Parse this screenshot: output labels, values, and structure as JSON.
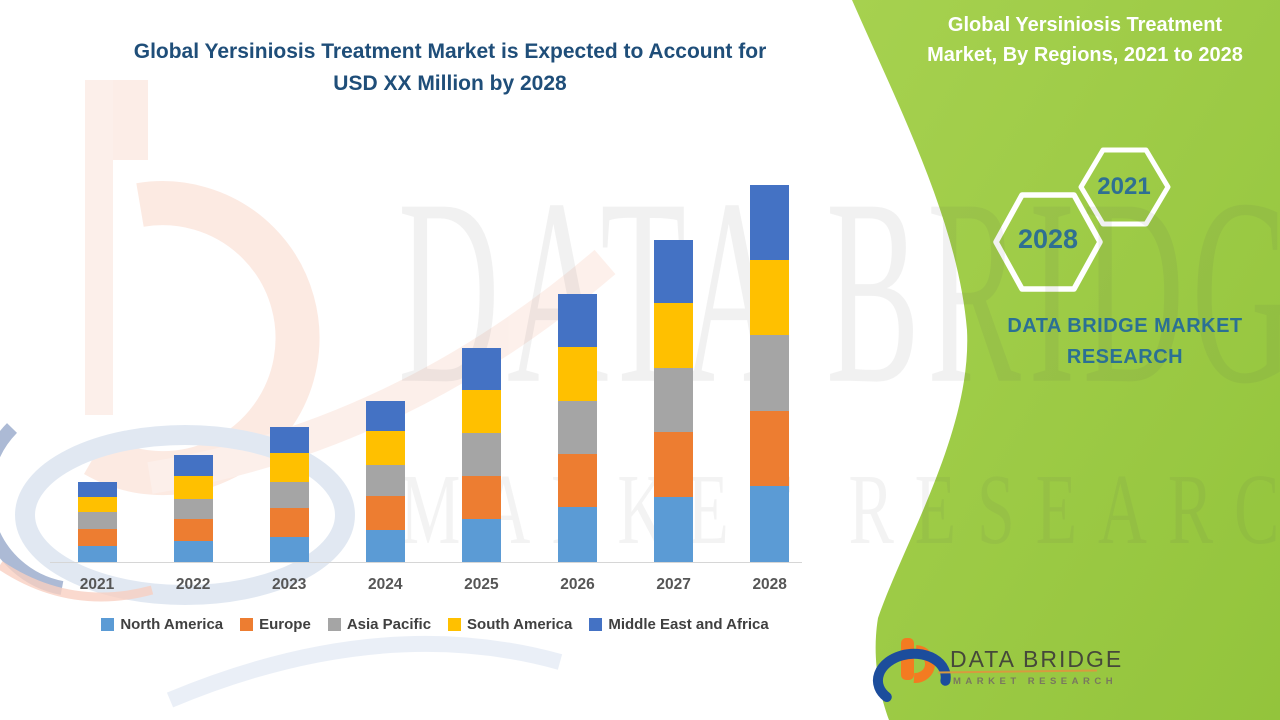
{
  "title": {
    "line1": "Global Yersiniosis Treatment Market is Expected to Account for",
    "line2": "USD XX Million by 2028"
  },
  "watermark": {
    "line1": "DATA BRIDGE",
    "line2": "MARKET RESEARCH"
  },
  "side_panel": {
    "heading_line1": "Global Yersiniosis Treatment",
    "heading_line2": "Market, By Regions, 2021 to 2028",
    "hexagons": [
      {
        "label": "2021"
      },
      {
        "label": "2028"
      }
    ],
    "brand": "DATA BRIDGE MARKET RESEARCH",
    "bg_color": "#9CCB45",
    "text_color": "#FFFFFF",
    "accent_text_color": "#2F7092"
  },
  "logo": {
    "name": "DATA BRIDGE",
    "subname": "MARKET RESEARCH"
  },
  "theme": {
    "title_color": "#1F4E79",
    "axis_label_color": "#565656",
    "legend_text_color": "#404040",
    "axis_line_color": "#D6D6D6"
  },
  "chart_data": {
    "type": "bar",
    "stacked": true,
    "title": "Global Yersiniosis Treatment Market is Expected to Account for USD XX Million by 2028",
    "categories": [
      "2021",
      "2022",
      "2023",
      "2024",
      "2025",
      "2026",
      "2027",
      "2028"
    ],
    "series": [
      {
        "name": "North America",
        "color": "#5B9BD5",
        "values": [
          16,
          21,
          25,
          32,
          43,
          55,
          65,
          76
        ]
      },
      {
        "name": "Europe",
        "color": "#ED7D31",
        "values": [
          17,
          22,
          29,
          34,
          43,
          53,
          65,
          75
        ]
      },
      {
        "name": "Asia Pacific",
        "color": "#A5A5A5",
        "values": [
          17,
          20,
          26,
          31,
          43,
          53,
          64,
          76
        ]
      },
      {
        "name": "South America",
        "color": "#FFC000",
        "values": [
          15,
          23,
          29,
          34,
          43,
          54,
          65,
          75
        ]
      },
      {
        "name": "Middle East and Africa",
        "color": "#4472C4",
        "values": [
          15,
          21,
          26,
          30,
          42,
          53,
          63,
          75
        ]
      }
    ],
    "totals": [
      80,
      107,
      135,
      161,
      214,
      268,
      322,
      377
    ],
    "xlabel": "",
    "ylabel": "",
    "ylim": [
      0,
      400
    ],
    "value_units": "relative index (y-axis not shown; actual values undisclosed as XX)",
    "y_axis_visible": false,
    "gridlines": false,
    "legend_position": "bottom"
  }
}
